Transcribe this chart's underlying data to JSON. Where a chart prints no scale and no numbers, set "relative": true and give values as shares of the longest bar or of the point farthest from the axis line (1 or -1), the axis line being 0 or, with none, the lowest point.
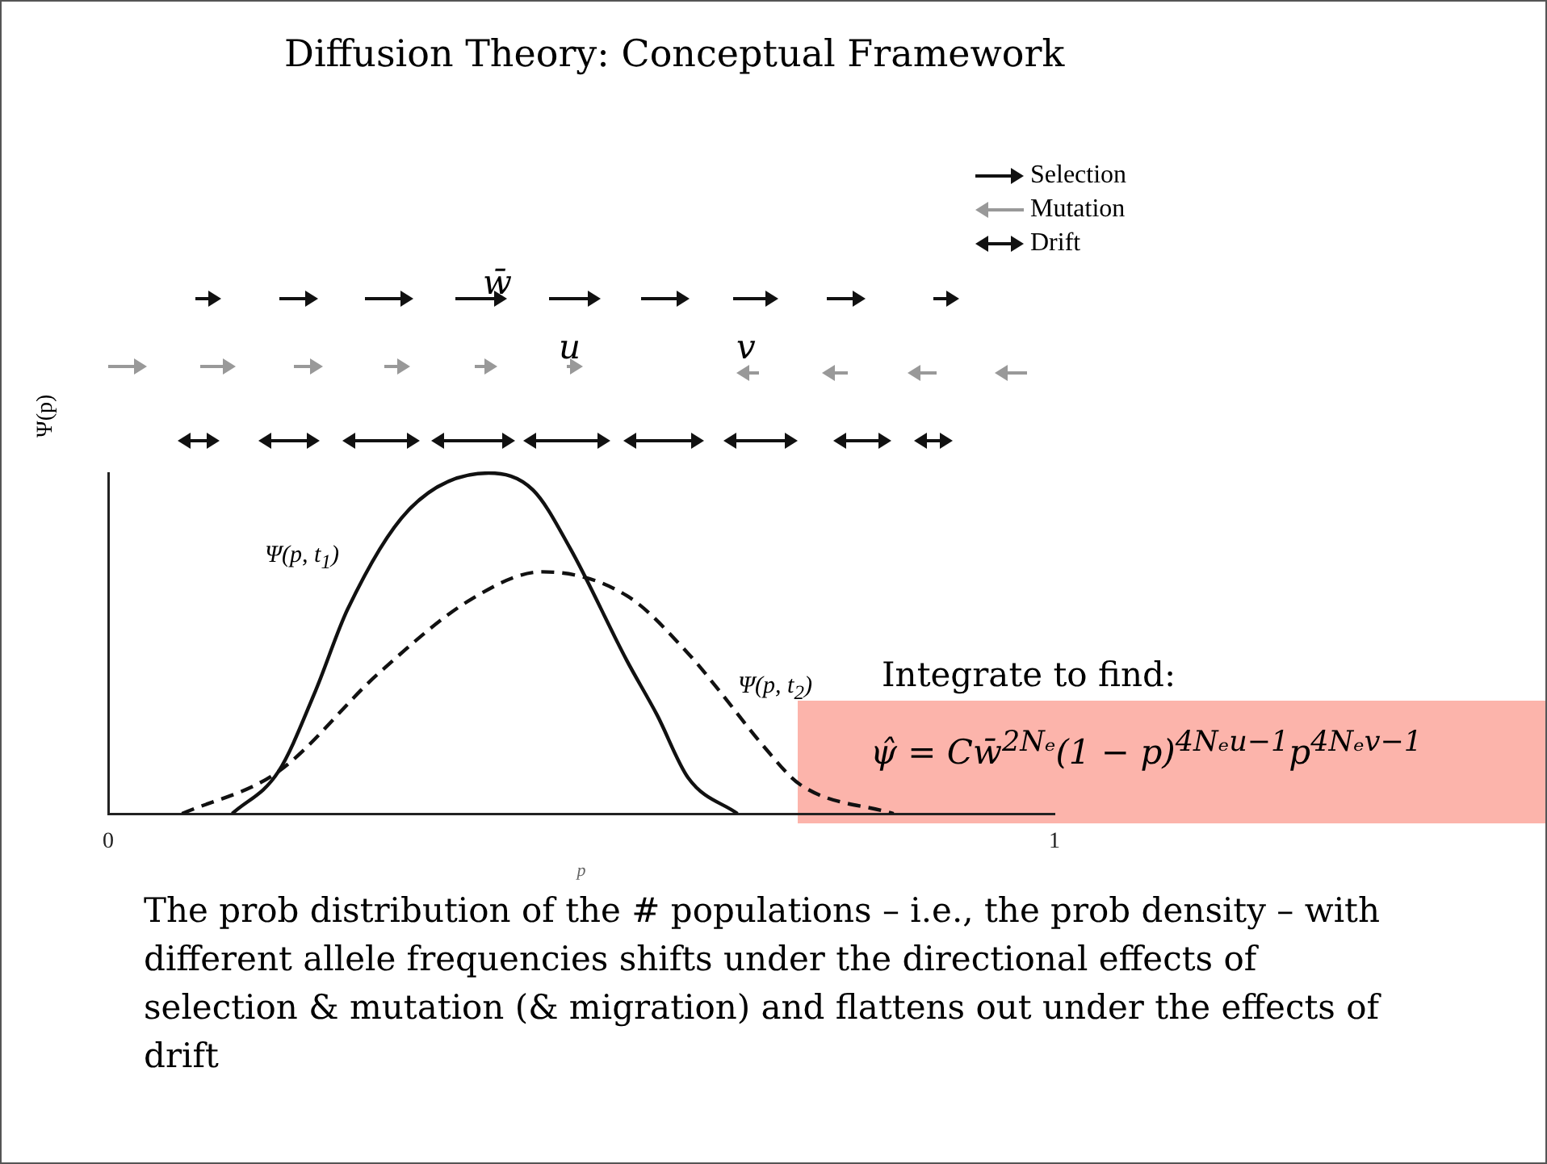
{
  "chart_data": {
    "type": "line",
    "title": "Diffusion Theory: Conceptual Framework",
    "xlabel": "p",
    "ylabel": "Ψ(p)",
    "relative": true,
    "xlim": [
      0,
      1
    ],
    "xticks": [
      0,
      1
    ],
    "grid": false,
    "legend": false,
    "marker": "none",
    "series": [
      {
        "x": [
          0.131,
          0.18,
          0.219,
          0.253,
          0.317,
          0.402,
          0.449,
          0.488,
          0.548,
          0.58,
          0.613,
          0.665
        ],
        "values": [
          0,
          0.124,
          0.36,
          0.6,
          0.89,
          1,
          0.95,
          0.78,
          0.45,
          0.29,
          0.105,
          0
        ],
        "color": "#111111",
        "line_style": "solid"
      },
      {
        "x": [
          0.078,
          0.18,
          0.285,
          0.384,
          0.459,
          0.548,
          0.613,
          0.646,
          0.692,
          0.731,
          0.83
        ],
        "values": [
          0,
          0.124,
          0.41,
          0.63,
          0.71,
          0.64,
          0.47,
          0.36,
          0.2,
          0.086,
          0
        ],
        "color": "#111111",
        "line_style": "dashed"
      }
    ],
    "annotations": [
      "Ψ(p, t$_{1}$)",
      "Ψ(p, t$_{2}$)",
      "Integrate to find:",
      "ψ̂ = Cw̄$^{2Nₑ}$(1 − p)$^{4Nₑu−1}$p$^{4Nₑv−1}$",
      "The prob distribution of the # populations – i.e., the  prob density – with different allele frequencies shifts under the directional effects of selection & mutation (& migration)  and flattens out under the effects of drift",
      "Selection",
      "Mutation",
      "Drift",
      "w̄",
      "u",
      "v"
    ]
  }
}
